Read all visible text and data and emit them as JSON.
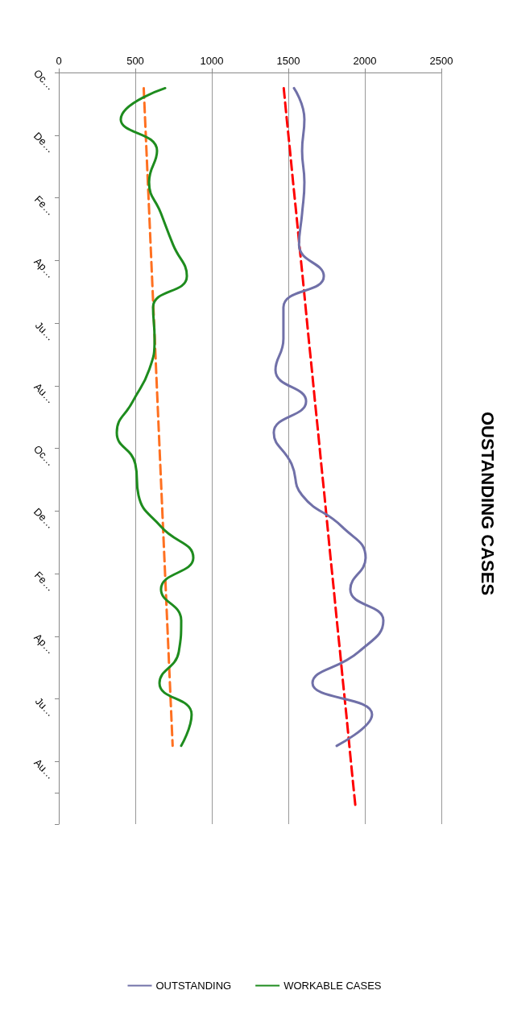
{
  "chart_data": {
    "type": "line",
    "title": "OUSTANDING CASES",
    "categories": [
      "Oc…",
      null,
      "De…",
      null,
      "Fe…",
      null,
      "Ap…",
      null,
      "Ju…",
      null,
      "Au…",
      null,
      "Oc…",
      null,
      "De…",
      null,
      "Fe…",
      null,
      "Ap…",
      null,
      "Ju…",
      null,
      "Au…",
      null
    ],
    "series": [
      {
        "name": "OUTSTANDING",
        "color": "#7070a8",
        "values": [
          1537,
          1605,
          1590,
          1605,
          1590,
          1570,
          1732,
          1468,
          1468,
          1416,
          1616,
          1405,
          1521,
          1590,
          1850,
          2005,
          1905,
          2121,
          1960,
          1658,
          2047,
          1816,
          null,
          null
        ]
      },
      {
        "name": "WORKABLE CASES",
        "color": "#1e8c1e",
        "values": [
          695,
          405,
          642,
          590,
          668,
          747,
          837,
          616,
          626,
          590,
          484,
          379,
          500,
          521,
          668,
          879,
          668,
          800,
          784,
          658,
          868,
          800,
          null,
          null
        ]
      },
      {
        "color": "#ff0000",
        "line_style": "dashed",
        "values": [
          1470,
          1490,
          1511,
          1531,
          1552,
          1572,
          1593,
          1613,
          1633,
          1654,
          1674,
          1695,
          1715,
          1736,
          1756,
          1776,
          1797,
          1817,
          1838,
          1858,
          1879,
          1899,
          1919,
          1940
        ]
      },
      {
        "color": "#ff7020",
        "line_style": "dashed",
        "values": [
          555,
          564,
          573,
          582,
          591,
          600,
          609,
          618,
          627,
          636,
          645,
          654,
          663,
          672,
          681,
          690,
          699,
          708,
          717,
          726,
          735,
          744,
          null,
          null
        ]
      }
    ],
    "orientation": "horizontal",
    "xlim": [
      0,
      2500
    ],
    "xticks": [
      0,
      500,
      1000,
      1500,
      2000,
      2500
    ],
    "grid": "x",
    "legend": "bottom",
    "marker": "none"
  }
}
